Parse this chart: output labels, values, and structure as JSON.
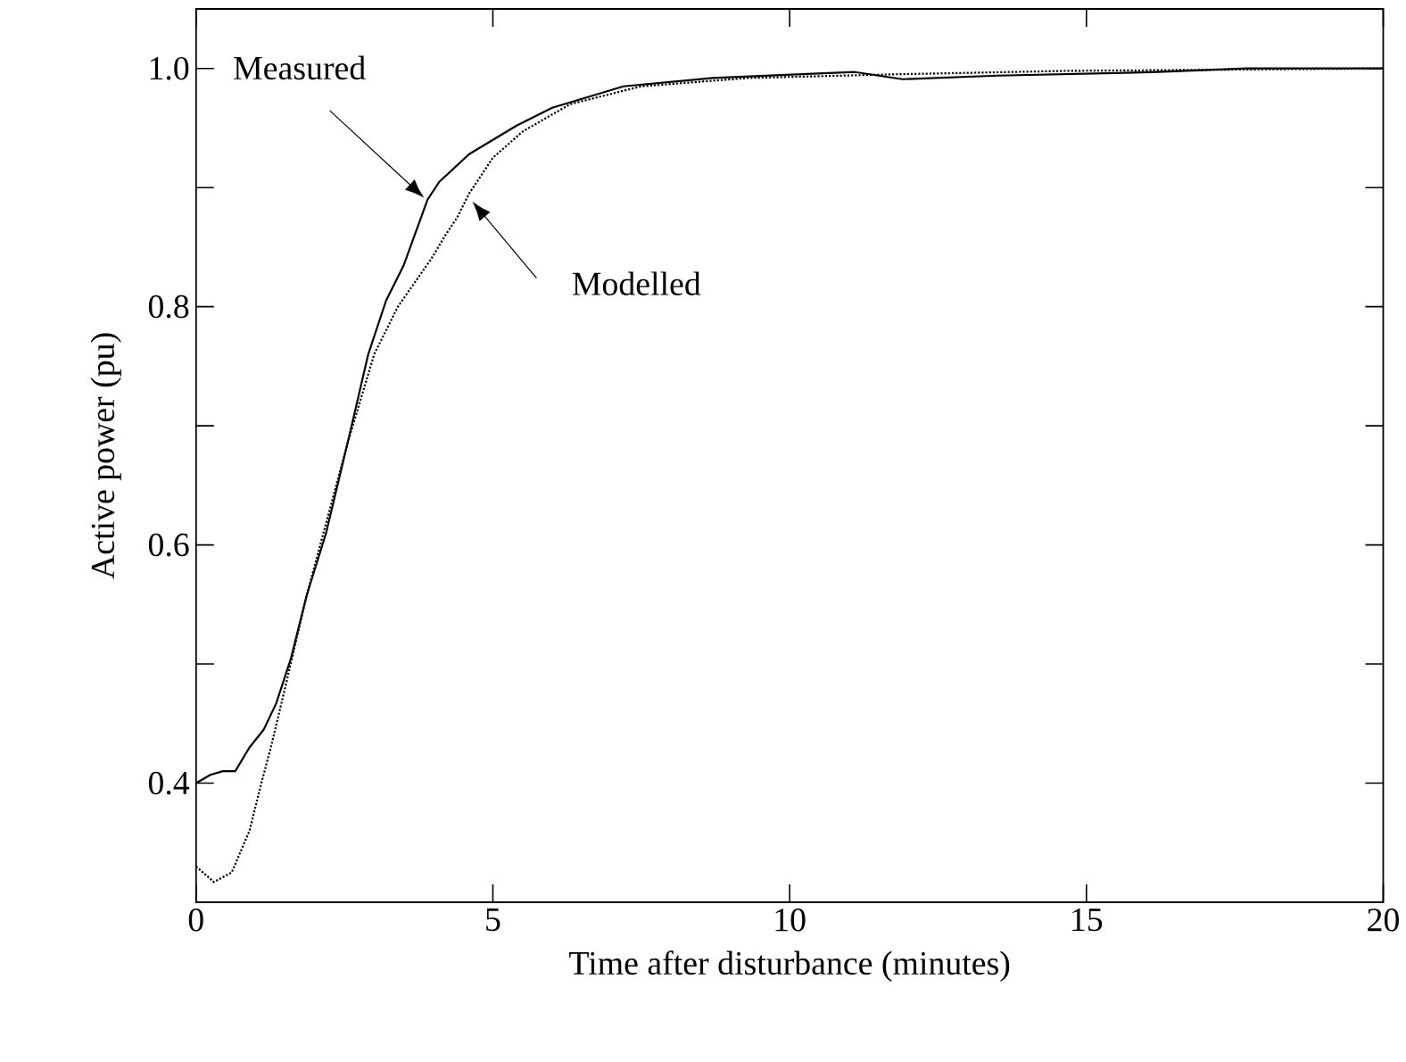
{
  "chart_data": {
    "type": "line",
    "xlabel": "Time after disturbance (minutes)",
    "ylabel": "Active power (pu)",
    "xlim": [
      0,
      20
    ],
    "ylim": [
      0.3,
      1.05
    ],
    "xticks": [
      0,
      5,
      10,
      15,
      20
    ],
    "yticks": [
      0.4,
      {
        "value": 0.5,
        "label": null
      },
      0.6,
      {
        "value": 0.7,
        "label": null
      },
      0.8,
      {
        "value": 0.9,
        "label": null
      },
      {
        "value": 1.0,
        "label": "1.0"
      }
    ],
    "grid": false,
    "series": [
      {
        "color": "#000000",
        "line_style": "solid",
        "x": [
          0,
          0.24,
          0.45,
          0.66,
          0.9,
          1.14,
          1.35,
          1.6,
          1.86,
          2.19,
          2.55,
          2.9,
          3.2,
          3.5,
          3.9,
          4.1,
          4.6,
          5.4,
          6.0,
          7.2,
          8.7,
          11.1,
          11.9,
          13.5,
          16.2,
          17.7,
          20
        ],
        "values": [
          0.4,
          0.407,
          0.41,
          0.41,
          0.43,
          0.445,
          0.467,
          0.505,
          0.557,
          0.61,
          0.685,
          0.76,
          0.805,
          0.835,
          0.89,
          0.905,
          0.928,
          0.952,
          0.967,
          0.985,
          0.992,
          0.997,
          0.991,
          0.994,
          0.997,
          1.0,
          1.0
        ]
      },
      {
        "color": "#000000",
        "line_style": "dotted",
        "x": [
          0,
          0.3,
          0.6,
          0.9,
          1.1,
          1.26,
          1.5,
          1.86,
          2.55,
          3.0,
          3.4,
          3.96,
          4.2,
          4.4,
          4.6,
          5.0,
          5.5,
          6.3,
          7.5,
          9.3,
          11.7,
          14.7,
          20
        ],
        "values": [
          0.33,
          0.317,
          0.325,
          0.36,
          0.4,
          0.43,
          0.48,
          0.557,
          0.685,
          0.76,
          0.8,
          0.84,
          0.86,
          0.875,
          0.895,
          0.925,
          0.947,
          0.97,
          0.985,
          0.992,
          0.995,
          0.998,
          1.0
        ]
      }
    ],
    "annotations": [
      "Measured",
      "Modelled"
    ]
  }
}
